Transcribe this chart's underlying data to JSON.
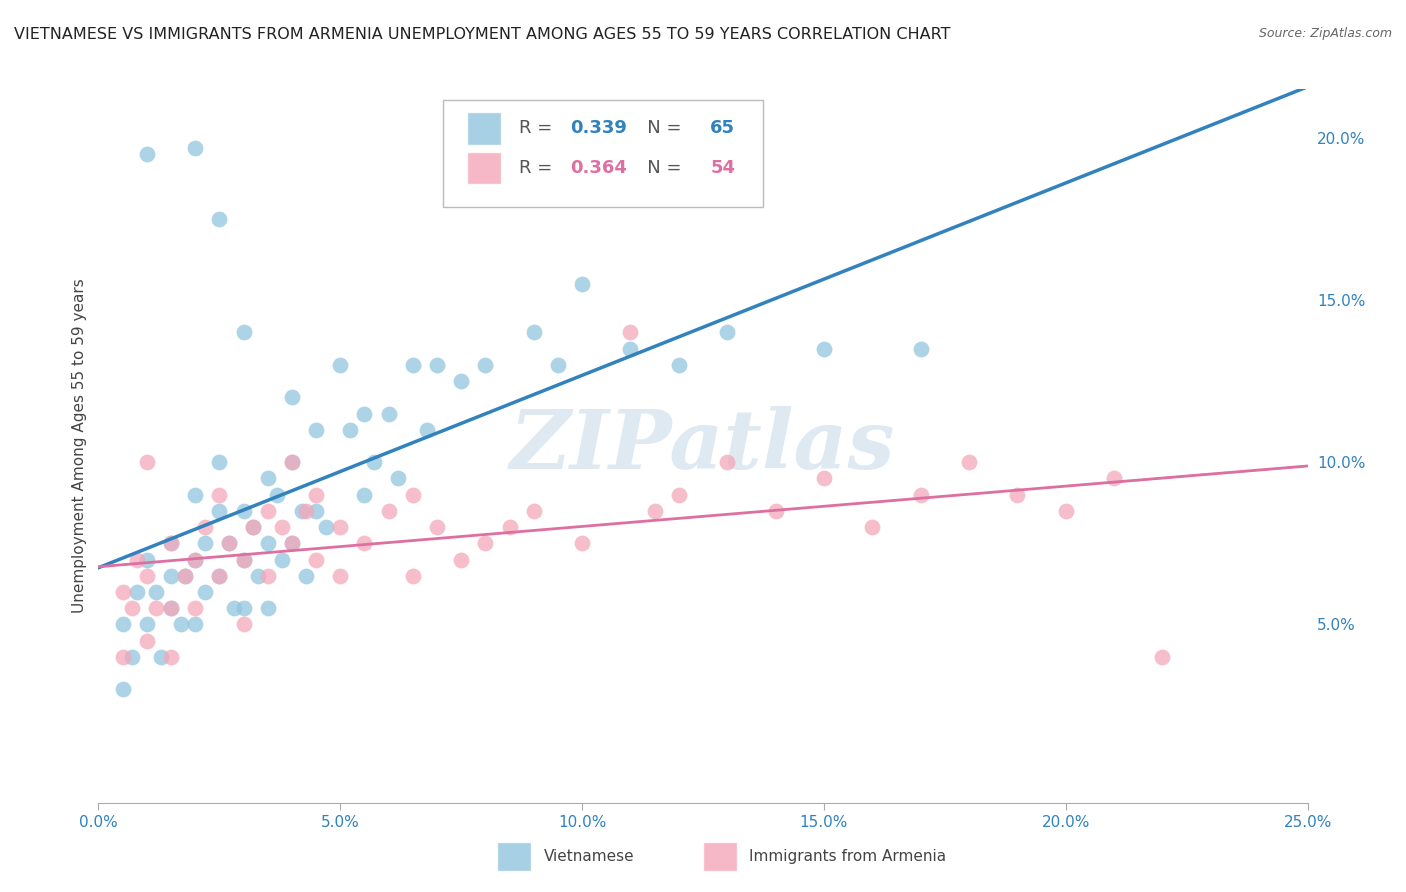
{
  "title": "VIETNAMESE VS IMMIGRANTS FROM ARMENIA UNEMPLOYMENT AMONG AGES 55 TO 59 YEARS CORRELATION CHART",
  "source": "Source: ZipAtlas.com",
  "ylabel": "Unemployment Among Ages 55 to 59 years",
  "xlim": [
    0.0,
    0.25
  ],
  "ylim": [
    -0.005,
    0.215
  ],
  "xticks": [
    0.0,
    0.05,
    0.1,
    0.15,
    0.2,
    0.25
  ],
  "xticklabels": [
    "0.0%",
    "5.0%",
    "10.0%",
    "15.0%",
    "20.0%",
    "25.0%"
  ],
  "yticks_right": [
    0.05,
    0.1,
    0.15,
    0.2
  ],
  "yticklabels_right": [
    "5.0%",
    "10.0%",
    "15.0%",
    "20.0%"
  ],
  "blue_R": 0.339,
  "blue_N": 65,
  "pink_R": 0.364,
  "pink_N": 54,
  "blue_color": "#92c5de",
  "pink_color": "#f4a7b9",
  "blue_line_color": "#3182bd",
  "pink_line_color": "#de6fa1",
  "legend_label_blue": "Vietnamese",
  "legend_label_pink": "Immigrants from Armenia",
  "blue_x": [
    0.005,
    0.005,
    0.007,
    0.008,
    0.01,
    0.01,
    0.012,
    0.013,
    0.015,
    0.015,
    0.015,
    0.017,
    0.018,
    0.02,
    0.02,
    0.02,
    0.022,
    0.022,
    0.025,
    0.025,
    0.025,
    0.027,
    0.028,
    0.03,
    0.03,
    0.03,
    0.032,
    0.033,
    0.035,
    0.035,
    0.035,
    0.037,
    0.038,
    0.04,
    0.04,
    0.042,
    0.043,
    0.045,
    0.045,
    0.047,
    0.05,
    0.052,
    0.055,
    0.055,
    0.057,
    0.06,
    0.062,
    0.065,
    0.068,
    0.07,
    0.075,
    0.08,
    0.09,
    0.095,
    0.1,
    0.11,
    0.12,
    0.13,
    0.15,
    0.17,
    0.02,
    0.025,
    0.01,
    0.03,
    0.04
  ],
  "blue_y": [
    0.03,
    0.05,
    0.04,
    0.06,
    0.05,
    0.07,
    0.06,
    0.04,
    0.055,
    0.065,
    0.075,
    0.05,
    0.065,
    0.07,
    0.09,
    0.05,
    0.075,
    0.06,
    0.085,
    0.065,
    0.1,
    0.075,
    0.055,
    0.085,
    0.07,
    0.055,
    0.08,
    0.065,
    0.095,
    0.075,
    0.055,
    0.09,
    0.07,
    0.1,
    0.075,
    0.085,
    0.065,
    0.11,
    0.085,
    0.08,
    0.13,
    0.11,
    0.115,
    0.09,
    0.1,
    0.115,
    0.095,
    0.13,
    0.11,
    0.13,
    0.125,
    0.13,
    0.14,
    0.13,
    0.155,
    0.135,
    0.13,
    0.14,
    0.135,
    0.135,
    0.197,
    0.175,
    0.195,
    0.14,
    0.12
  ],
  "pink_x": [
    0.005,
    0.005,
    0.007,
    0.008,
    0.01,
    0.01,
    0.012,
    0.015,
    0.015,
    0.018,
    0.02,
    0.02,
    0.022,
    0.025,
    0.025,
    0.027,
    0.03,
    0.03,
    0.032,
    0.035,
    0.035,
    0.038,
    0.04,
    0.04,
    0.043,
    0.045,
    0.045,
    0.05,
    0.05,
    0.055,
    0.06,
    0.065,
    0.065,
    0.07,
    0.075,
    0.08,
    0.085,
    0.09,
    0.1,
    0.11,
    0.115,
    0.12,
    0.13,
    0.14,
    0.15,
    0.16,
    0.17,
    0.18,
    0.19,
    0.2,
    0.21,
    0.22,
    0.01,
    0.015
  ],
  "pink_y": [
    0.04,
    0.06,
    0.055,
    0.07,
    0.045,
    0.065,
    0.055,
    0.075,
    0.055,
    0.065,
    0.07,
    0.055,
    0.08,
    0.065,
    0.09,
    0.075,
    0.07,
    0.05,
    0.08,
    0.065,
    0.085,
    0.08,
    0.1,
    0.075,
    0.085,
    0.07,
    0.09,
    0.065,
    0.08,
    0.075,
    0.085,
    0.09,
    0.065,
    0.08,
    0.07,
    0.075,
    0.08,
    0.085,
    0.075,
    0.14,
    0.085,
    0.09,
    0.1,
    0.085,
    0.095,
    0.08,
    0.09,
    0.1,
    0.09,
    0.085,
    0.095,
    0.04,
    0.1,
    0.04
  ],
  "background_color": "#ffffff",
  "grid_color": "#cccccc",
  "watermark_text": "ZIPatlas",
  "watermark_color": "#b8cfe0",
  "title_fontsize": 11.5,
  "axis_label_fontsize": 11,
  "tick_fontsize": 11,
  "legend_fontsize": 13
}
